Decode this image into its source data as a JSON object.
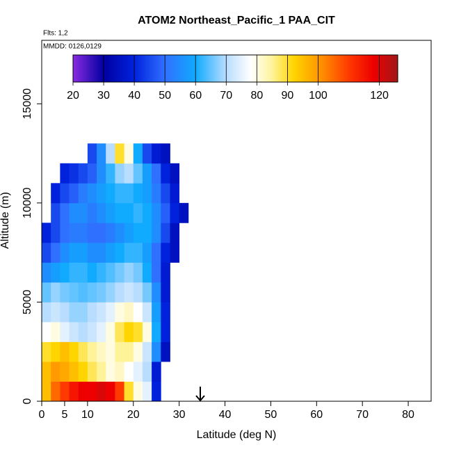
{
  "chart_data": {
    "type": "heatmap",
    "title": "ATOM2 Northeast_Pacific_1 PAA_CIT",
    "annotations": [
      "Flts: 1,2",
      "MMDD: 0126,0129"
    ],
    "x_label": "Latitude (deg N)",
    "y_label": "Altitude (m)",
    "xlim": [
      0,
      85
    ],
    "ylim": [
      0,
      18200
    ],
    "xticks": [
      0,
      5,
      10,
      20,
      30,
      40,
      50,
      60,
      70,
      80
    ],
    "yticks": [
      0,
      5000,
      10000,
      15000
    ],
    "x": [
      0,
      2,
      4,
      6,
      8,
      10,
      12,
      14,
      16,
      18,
      20,
      22,
      24,
      26,
      28,
      30,
      32
    ],
    "y": [
      0,
      1000,
      2000,
      3000,
      4000,
      5000,
      6000,
      7000,
      8000,
      9000,
      10000,
      11000,
      12000,
      13000
    ],
    "values": [
      [
        95,
        105,
        110,
        115,
        118,
        118,
        120,
        118,
        110,
        90,
        80,
        75,
        40,
        null,
        null,
        null
      ],
      [
        95,
        100,
        98,
        95,
        92,
        88,
        85,
        80,
        82,
        78,
        75,
        70,
        38,
        null,
        null,
        null
      ],
      [
        90,
        92,
        95,
        92,
        88,
        85,
        82,
        80,
        85,
        85,
        80,
        72,
        55,
        35,
        null,
        null
      ],
      [
        78,
        80,
        75,
        72,
        70,
        72,
        75,
        80,
        88,
        92,
        90,
        80,
        60,
        40,
        null,
        null
      ],
      [
        70,
        72,
        70,
        68,
        68,
        70,
        72,
        75,
        80,
        82,
        78,
        72,
        58,
        40,
        null,
        null
      ],
      [
        65,
        68,
        66,
        65,
        64,
        65,
        66,
        68,
        70,
        72,
        70,
        66,
        55,
        38,
        null,
        null
      ],
      [
        55,
        58,
        60,
        62,
        62,
        60,
        62,
        64,
        66,
        68,
        66,
        60,
        50,
        38,
        null,
        null
      ],
      [
        45,
        50,
        55,
        58,
        58,
        55,
        55,
        58,
        60,
        62,
        62,
        58,
        50,
        40,
        35,
        null
      ],
      [
        40,
        45,
        50,
        52,
        52,
        50,
        50,
        52,
        55,
        58,
        60,
        60,
        55,
        45,
        35,
        null
      ],
      [
        null,
        45,
        50,
        55,
        55,
        52,
        55,
        58,
        60,
        60,
        62,
        60,
        55,
        48,
        40,
        35
      ],
      [
        null,
        40,
        45,
        48,
        52,
        55,
        58,
        60,
        62,
        62,
        60,
        58,
        52,
        45,
        38,
        null
      ],
      [
        null,
        null,
        40,
        42,
        45,
        48,
        55,
        62,
        68,
        70,
        65,
        58,
        50,
        40,
        35,
        null
      ],
      [
        null,
        null,
        null,
        null,
        null,
        45,
        55,
        70,
        90,
        80,
        60,
        45,
        38,
        35,
        null,
        null
      ]
    ],
    "colorbar_lim": [
      20,
      126
    ],
    "colorbar_ticks": [
      20,
      30,
      40,
      50,
      60,
      70,
      80,
      90,
      100,
      120
    ],
    "colorscale": [
      {
        "value": 20,
        "color": "#8a2be2"
      },
      {
        "value": 30,
        "color": "#0000a0"
      },
      {
        "value": 40,
        "color": "#0022dd"
      },
      {
        "value": 50,
        "color": "#3070ff"
      },
      {
        "value": 60,
        "color": "#10aaff"
      },
      {
        "value": 70,
        "color": "#b8ddff"
      },
      {
        "value": 78,
        "color": "#ffffff"
      },
      {
        "value": 85,
        "color": "#fff39a"
      },
      {
        "value": 92,
        "color": "#ffd500"
      },
      {
        "value": 100,
        "color": "#ff9a00"
      },
      {
        "value": 110,
        "color": "#ff3a00"
      },
      {
        "value": 118,
        "color": "#ee0000"
      },
      {
        "value": 126,
        "color": "#a01818"
      }
    ]
  }
}
